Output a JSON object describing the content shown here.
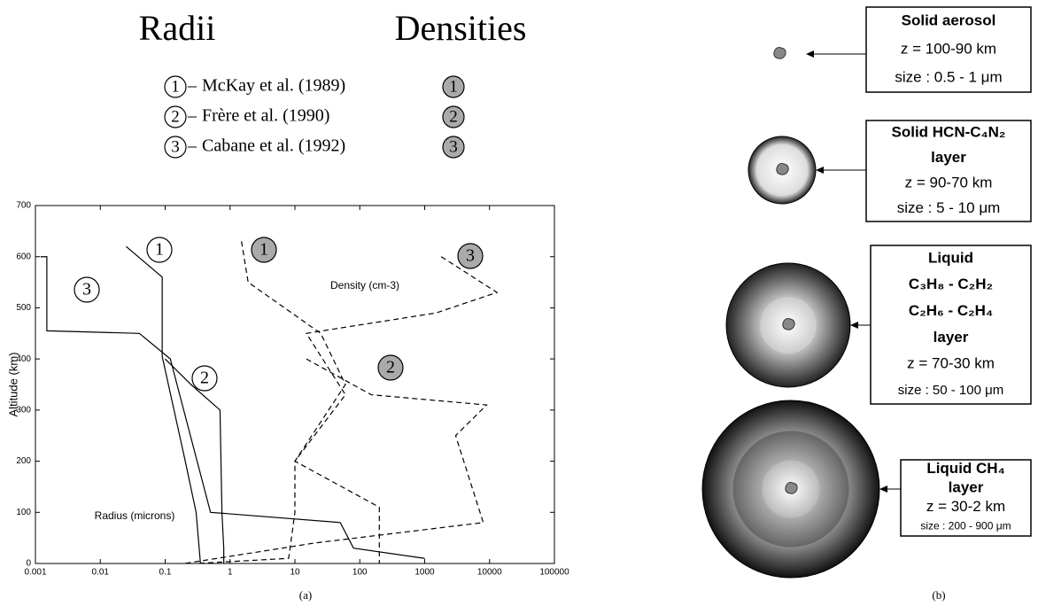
{
  "chart_data": {
    "type": "line",
    "radius_title": "Radii",
    "density_title": "Densities",
    "ylabel": "Altitude (km)",
    "caption": "(a)",
    "annotations": [
      "Density (cm-3)",
      "Radius (microns)"
    ],
    "xlog": true,
    "xlim": [
      0.001,
      100000
    ],
    "xticks": [
      0.001,
      0.01,
      0.1,
      1,
      10,
      100,
      1000,
      10000,
      100000
    ],
    "ylim": [
      0,
      700
    ],
    "yticks": [
      0,
      100,
      200,
      300,
      400,
      500,
      600,
      700
    ],
    "series": [
      {
        "name": "McKay et al. (1989)",
        "label": "1",
        "kind": "radius",
        "style": "solid",
        "color": "#000000",
        "x": [
          0.025,
          0.09,
          0.09,
          0.2,
          0.3,
          0.35
        ],
        "values": [
          620,
          560,
          405,
          205,
          100,
          0
        ]
      },
      {
        "name": "Frère et al. (1990)",
        "label": "2",
        "kind": "radius",
        "style": "solid",
        "color": "#000000",
        "x": [
          0.1,
          0.25,
          0.7,
          0.75,
          0.8,
          0.8
        ],
        "values": [
          400,
          350,
          300,
          100,
          30,
          0
        ]
      },
      {
        "name": "Cabane et al. (1992)",
        "label": "3",
        "kind": "radius",
        "style": "solid",
        "color": "#000000",
        "x": [
          0.0012,
          0.0015,
          0.0015,
          0.04,
          0.12,
          0.5,
          50,
          80,
          1000
        ],
        "values": [
          600,
          600,
          455,
          450,
          400,
          100,
          80,
          30,
          10
        ]
      },
      {
        "label": "1",
        "kind": "density",
        "style": "dashed",
        "color": "#000000",
        "x": [
          1.5,
          1.9,
          25,
          60,
          10,
          10,
          8,
          0.3
        ],
        "values": [
          630,
          550,
          450,
          350,
          200,
          100,
          10,
          0
        ]
      },
      {
        "label": "2",
        "kind": "density",
        "style": "dashed",
        "color": "#000000",
        "x": [
          15,
          150,
          9000,
          3000,
          8000,
          20,
          0.2
        ],
        "values": [
          400,
          330,
          310,
          250,
          80,
          40,
          0
        ]
      },
      {
        "label": "3",
        "kind": "density",
        "style": "dashed",
        "color": "#000000",
        "x": [
          1800,
          13000,
          1500,
          15,
          60,
          10,
          200,
          200
        ],
        "values": [
          600,
          530,
          490,
          450,
          330,
          200,
          110,
          0
        ]
      }
    ]
  },
  "diagram": {
    "caption": "(b)",
    "particles": [
      {
        "lines": [
          "Solid aerosol",
          "z = 100-90 km",
          "size : 0.5 - 1 μm"
        ]
      },
      {
        "lines": [
          "Solid HCN-C₄N₂",
          "layer",
          "z = 90-70 km",
          "size : 5 - 10 μm"
        ]
      },
      {
        "lines": [
          "Liquid",
          "C₃H₈ - C₂H₂",
          "C₂H₆ - C₂H₄",
          "layer",
          "z = 70-30 km",
          "size : 50 - 100 μm"
        ]
      },
      {
        "lines": [
          "Liquid CH₄",
          "layer",
          "z = 30-2 km",
          "size : 200 - 900 μm"
        ]
      }
    ]
  }
}
